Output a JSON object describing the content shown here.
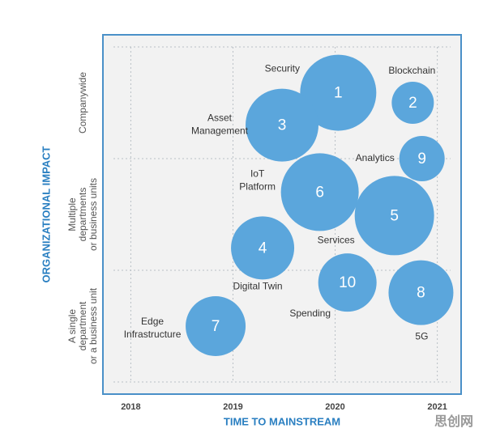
{
  "chart_data": {
    "type": "bubble",
    "x_label": "TIME TO MAINSTREAM",
    "y_label": "ORGANIZATIONAL IMPACT",
    "xlim": [
      2017.83,
      2021.13
    ],
    "xticks": [
      2018,
      2019,
      2020,
      2021
    ],
    "ylim": [
      0,
      3
    ],
    "yticks": [
      0,
      1,
      2,
      3
    ],
    "ycategories": [
      [
        "A single",
        "department",
        "or a business unit"
      ],
      [
        "Multiple",
        "departments",
        "or business units"
      ],
      [
        "Companywide"
      ]
    ],
    "labels": [
      "1",
      "2",
      "3",
      "9",
      "6",
      "5",
      "4",
      "10",
      "8",
      "7"
    ],
    "names": [
      [
        "Security"
      ],
      [
        "Blockchain"
      ],
      [
        "Asset",
        "Management"
      ],
      [
        "Analytics"
      ],
      [
        "IoT",
        "Platform"
      ],
      [
        "Services"
      ],
      [
        "Digital Twin"
      ],
      [
        "Spending"
      ],
      [
        "5G"
      ],
      [
        "Edge",
        "Infrastructure"
      ]
    ],
    "x": [
      2020.03,
      2020.76,
      2019.48,
      2020.85,
      2019.85,
      2020.58,
      2019.29,
      2020.12,
      2020.84,
      2018.83
    ],
    "y": [
      2.59,
      2.5,
      2.3,
      2.0,
      1.7,
      1.49,
      1.2,
      0.89,
      0.8,
      0.5
    ],
    "sizes": [
      47,
      26,
      45,
      28,
      48,
      49,
      39,
      36,
      40,
      37
    ],
    "color": "#5ba6dc",
    "grid": true,
    "watermark": "思创网"
  }
}
